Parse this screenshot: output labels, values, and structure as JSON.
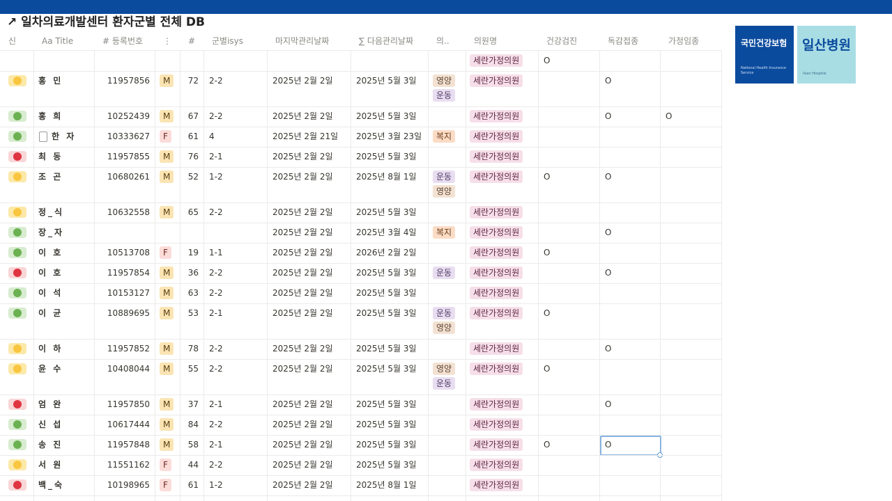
{
  "title": "↗ 일차의료개발센터 환자군별 전체 DB",
  "columns": [
    "신",
    "Aa Title",
    "# 등록번호",
    "⋮",
    "#",
    "군별isys",
    "마지막관리날짜",
    "∑ 다음관리날짜",
    "의..",
    "의원명",
    "건강검진",
    "독감접종",
    "가정임종"
  ],
  "rows": [
    {
      "clinic": "세란가정의원",
      "checkup": "O"
    },
    {
      "status": "yellow",
      "name": "홍 민",
      "reg": "11957856",
      "gender": "M",
      "age": "72",
      "group": "2-2",
      "last": "2025년 2월 2일",
      "next": "2025년 5월 3일",
      "programs": [
        "영양",
        "운동"
      ],
      "clinic": "세란가정의원",
      "flu": "O"
    },
    {
      "status": "green",
      "name": "홍 희",
      "reg": "10252439",
      "gender": "M",
      "age": "67",
      "group": "2-2",
      "last": "2025년 2월 2일",
      "next": "2025년 5월 3일",
      "clinic": "세란가정의원",
      "flu": "O",
      "hospice": "O"
    },
    {
      "status": "green",
      "name": "한 자",
      "doc": true,
      "reg": "10333627",
      "gender": "F",
      "age": "61",
      "group": "4",
      "last": "2025년 2월 21일",
      "next": "2025년 3월 23일",
      "programs": [
        "복지"
      ],
      "clinic": "세란가정의원"
    },
    {
      "status": "red",
      "name": "최 동",
      "reg": "11957855",
      "gender": "M",
      "age": "76",
      "group": "2-1",
      "last": "2025년 2월 2일",
      "next": "2025년 5월 3일",
      "clinic": "세란가정의원"
    },
    {
      "status": "yellow",
      "name": "조 곤",
      "reg": "10680261",
      "gender": "M",
      "age": "52",
      "group": "1-2",
      "last": "2025년 2월 2일",
      "next": "2025년 8월 1일",
      "programs": [
        "운동",
        "영양"
      ],
      "clinic": "세란가정의원",
      "checkup": "O",
      "flu": "O"
    },
    {
      "status": "yellow",
      "name": "정_식",
      "reg": "10632558",
      "gender": "M",
      "age": "65",
      "group": "2-2",
      "last": "2025년 2월 2일",
      "next": "2025년 5월 3일",
      "clinic": "세란가정의원"
    },
    {
      "status": "green",
      "name": "장_자",
      "last": "2025년 2월 2일",
      "next": "2025년 3월 4일",
      "programs": [
        "복지"
      ],
      "clinic": "세란가정의원",
      "flu": "O"
    },
    {
      "status": "green",
      "name": "이 호",
      "reg": "10513708",
      "gender": "F",
      "age": "19",
      "group": "1-1",
      "last": "2025년 2월 2일",
      "next": "2026년 2월 2일",
      "clinic": "세란가정의원",
      "checkup": "O"
    },
    {
      "status": "red",
      "name": "이 호",
      "reg": "11957854",
      "gender": "M",
      "age": "36",
      "group": "2-2",
      "last": "2025년 2월 2일",
      "next": "2025년 5월 3일",
      "programs": [
        "운동"
      ],
      "clinic": "세란가정의원",
      "flu": "O"
    },
    {
      "status": "green",
      "name": "이 석",
      "reg": "10153127",
      "gender": "M",
      "age": "63",
      "group": "2-2",
      "last": "2025년 2월 2일",
      "next": "2025년 5월 3일",
      "clinic": "세란가정의원"
    },
    {
      "status": "green",
      "name": "이 균",
      "reg": "10889695",
      "gender": "M",
      "age": "53",
      "group": "2-1",
      "last": "2025년 2월 2일",
      "next": "2025년 5월 3일",
      "programs": [
        "운동",
        "영양"
      ],
      "clinic": "세란가정의원",
      "checkup": "O"
    },
    {
      "status": "yellow",
      "name": "이 하",
      "reg": "11957852",
      "gender": "M",
      "age": "78",
      "group": "2-2",
      "last": "2025년 2월 2일",
      "next": "2025년 5월 3일",
      "clinic": "세란가정의원",
      "flu": "O"
    },
    {
      "status": "yellow",
      "name": "윤 수",
      "reg": "10408044",
      "gender": "M",
      "age": "55",
      "group": "2-2",
      "last": "2025년 2월 2일",
      "next": "2025년 5월 3일",
      "programs": [
        "영양",
        "운동"
      ],
      "clinic": "세란가정의원",
      "checkup": "O"
    },
    {
      "status": "red",
      "name": "엄 완",
      "reg": "11957850",
      "gender": "M",
      "age": "37",
      "group": "2-1",
      "last": "2025년 2월 2일",
      "next": "2025년 5월 3일",
      "clinic": "세란가정의원",
      "flu": "O"
    },
    {
      "status": "green",
      "name": "신 섭",
      "reg": "10617444",
      "gender": "M",
      "age": "84",
      "group": "2-2",
      "last": "2025년 2월 2일",
      "next": "2025년 5월 3일",
      "clinic": "세란가정의원"
    },
    {
      "status": "green",
      "name": "송 진",
      "reg": "11957848",
      "gender": "M",
      "age": "58",
      "group": "2-1",
      "last": "2025년 2월 2일",
      "next": "2025년 5월 3일",
      "clinic": "세란가정의원",
      "checkup": "O",
      "flu": "O",
      "selected": "flu"
    },
    {
      "status": "yellow",
      "name": "서 원",
      "reg": "11551162",
      "gender": "F",
      "age": "44",
      "group": "2-2",
      "last": "2025년 2월 2일",
      "next": "2025년 5월 3일",
      "clinic": "세란가정의원"
    },
    {
      "status": "red",
      "name": "백_숙",
      "reg": "10198965",
      "gender": "F",
      "age": "61",
      "group": "1-2",
      "last": "2025년 2월 2일",
      "next": "2025년 8월 1일",
      "clinic": "세란가정의원"
    }
  ],
  "logos": {
    "nhis": "국민건강보험",
    "nhis_sub": "National Health Insurance Service",
    "ilsan": "일산병원",
    "ilsan_sub": "Ilsan Hospital"
  }
}
